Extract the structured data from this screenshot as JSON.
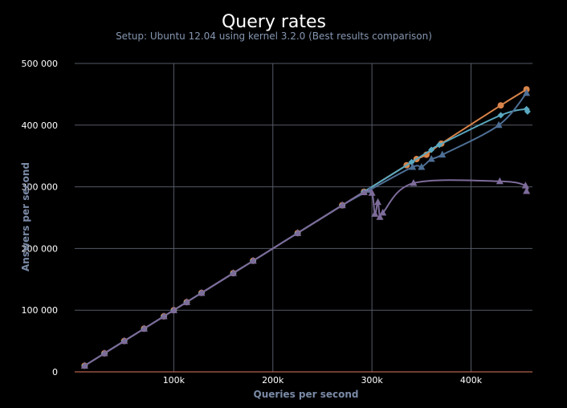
{
  "chart_data": {
    "type": "line",
    "title": "Query rates",
    "subtitle": "Setup: Ubuntu 12.04 using kernel 3.2.0 (Best results comparison)",
    "xlabel": "Queries per second",
    "ylabel": "Answers per second",
    "xlim": [
      0,
      462000
    ],
    "ylim": [
      0,
      500000
    ],
    "x_ticks": [
      100000,
      200000,
      300000,
      400000
    ],
    "x_tick_labels": [
      "100k",
      "200k",
      "300k",
      "400k"
    ],
    "y_ticks": [
      0,
      100000,
      200000,
      300000,
      400000,
      500000
    ],
    "y_tick_labels": [
      "0",
      "100 000",
      "200 000",
      "300 000",
      "400 000",
      "500 000"
    ],
    "grid": true,
    "legend": "none",
    "series": [
      {
        "color": "#d9844a",
        "marker": "circle",
        "points": [
          [
            10000,
            10000
          ],
          [
            30000,
            30000
          ],
          [
            50000,
            50000
          ],
          [
            70000,
            70000
          ],
          [
            90000,
            90000
          ],
          [
            100000,
            100000
          ],
          [
            113000,
            113000
          ],
          [
            128000,
            128000
          ],
          [
            160000,
            160000
          ],
          [
            180000,
            180000
          ],
          [
            225000,
            225000
          ],
          [
            270000,
            270000
          ],
          [
            292000,
            292000
          ],
          [
            335000,
            335000
          ],
          [
            345000,
            345000
          ],
          [
            355000,
            352000
          ],
          [
            370000,
            370000
          ],
          [
            430000,
            432000
          ],
          [
            456000,
            458000
          ]
        ]
      },
      {
        "color": "#5aa9c0",
        "marker": "diamond",
        "points": [
          [
            10000,
            10000
          ],
          [
            30000,
            30000
          ],
          [
            50000,
            50000
          ],
          [
            70000,
            70000
          ],
          [
            90000,
            90000
          ],
          [
            100000,
            100000
          ],
          [
            113000,
            113000
          ],
          [
            128000,
            128000
          ],
          [
            160000,
            160000
          ],
          [
            180000,
            180000
          ],
          [
            225000,
            225000
          ],
          [
            270000,
            270000
          ],
          [
            292000,
            292000
          ],
          [
            340000,
            340000
          ],
          [
            360000,
            360000
          ],
          [
            368000,
            368000
          ],
          [
            430000,
            416000
          ],
          [
            456000,
            426000
          ],
          [
            457000,
            422000
          ]
        ]
      },
      {
        "color": "#4e6f96",
        "marker": "triangle",
        "points": [
          [
            10000,
            10000
          ],
          [
            30000,
            30000
          ],
          [
            50000,
            50000
          ],
          [
            70000,
            70000
          ],
          [
            90000,
            90000
          ],
          [
            100000,
            100000
          ],
          [
            113000,
            113000
          ],
          [
            128000,
            128000
          ],
          [
            160000,
            160000
          ],
          [
            180000,
            180000
          ],
          [
            225000,
            225000
          ],
          [
            270000,
            270000
          ],
          [
            298000,
            295000
          ],
          [
            341000,
            332000
          ],
          [
            350000,
            332000
          ],
          [
            360000,
            345000
          ],
          [
            371000,
            352000
          ],
          [
            428000,
            400000
          ],
          [
            456000,
            452000
          ]
        ]
      },
      {
        "color": "#7d6b9a",
        "marker": "triangle",
        "points": [
          [
            10000,
            10000
          ],
          [
            30000,
            30000
          ],
          [
            50000,
            50000
          ],
          [
            70000,
            70000
          ],
          [
            90000,
            90000
          ],
          [
            100000,
            100000
          ],
          [
            113000,
            113000
          ],
          [
            128000,
            128000
          ],
          [
            160000,
            160000
          ],
          [
            180000,
            180000
          ],
          [
            225000,
            225000
          ],
          [
            270000,
            270000
          ],
          [
            292000,
            291000
          ],
          [
            300000,
            290000
          ],
          [
            303000,
            256000
          ],
          [
            306000,
            275000
          ],
          [
            308000,
            251000
          ],
          [
            311000,
            258000
          ],
          [
            342000,
            306000
          ],
          [
            429000,
            309000
          ],
          [
            455000,
            302000
          ],
          [
            456000,
            293000
          ]
        ]
      }
    ]
  }
}
